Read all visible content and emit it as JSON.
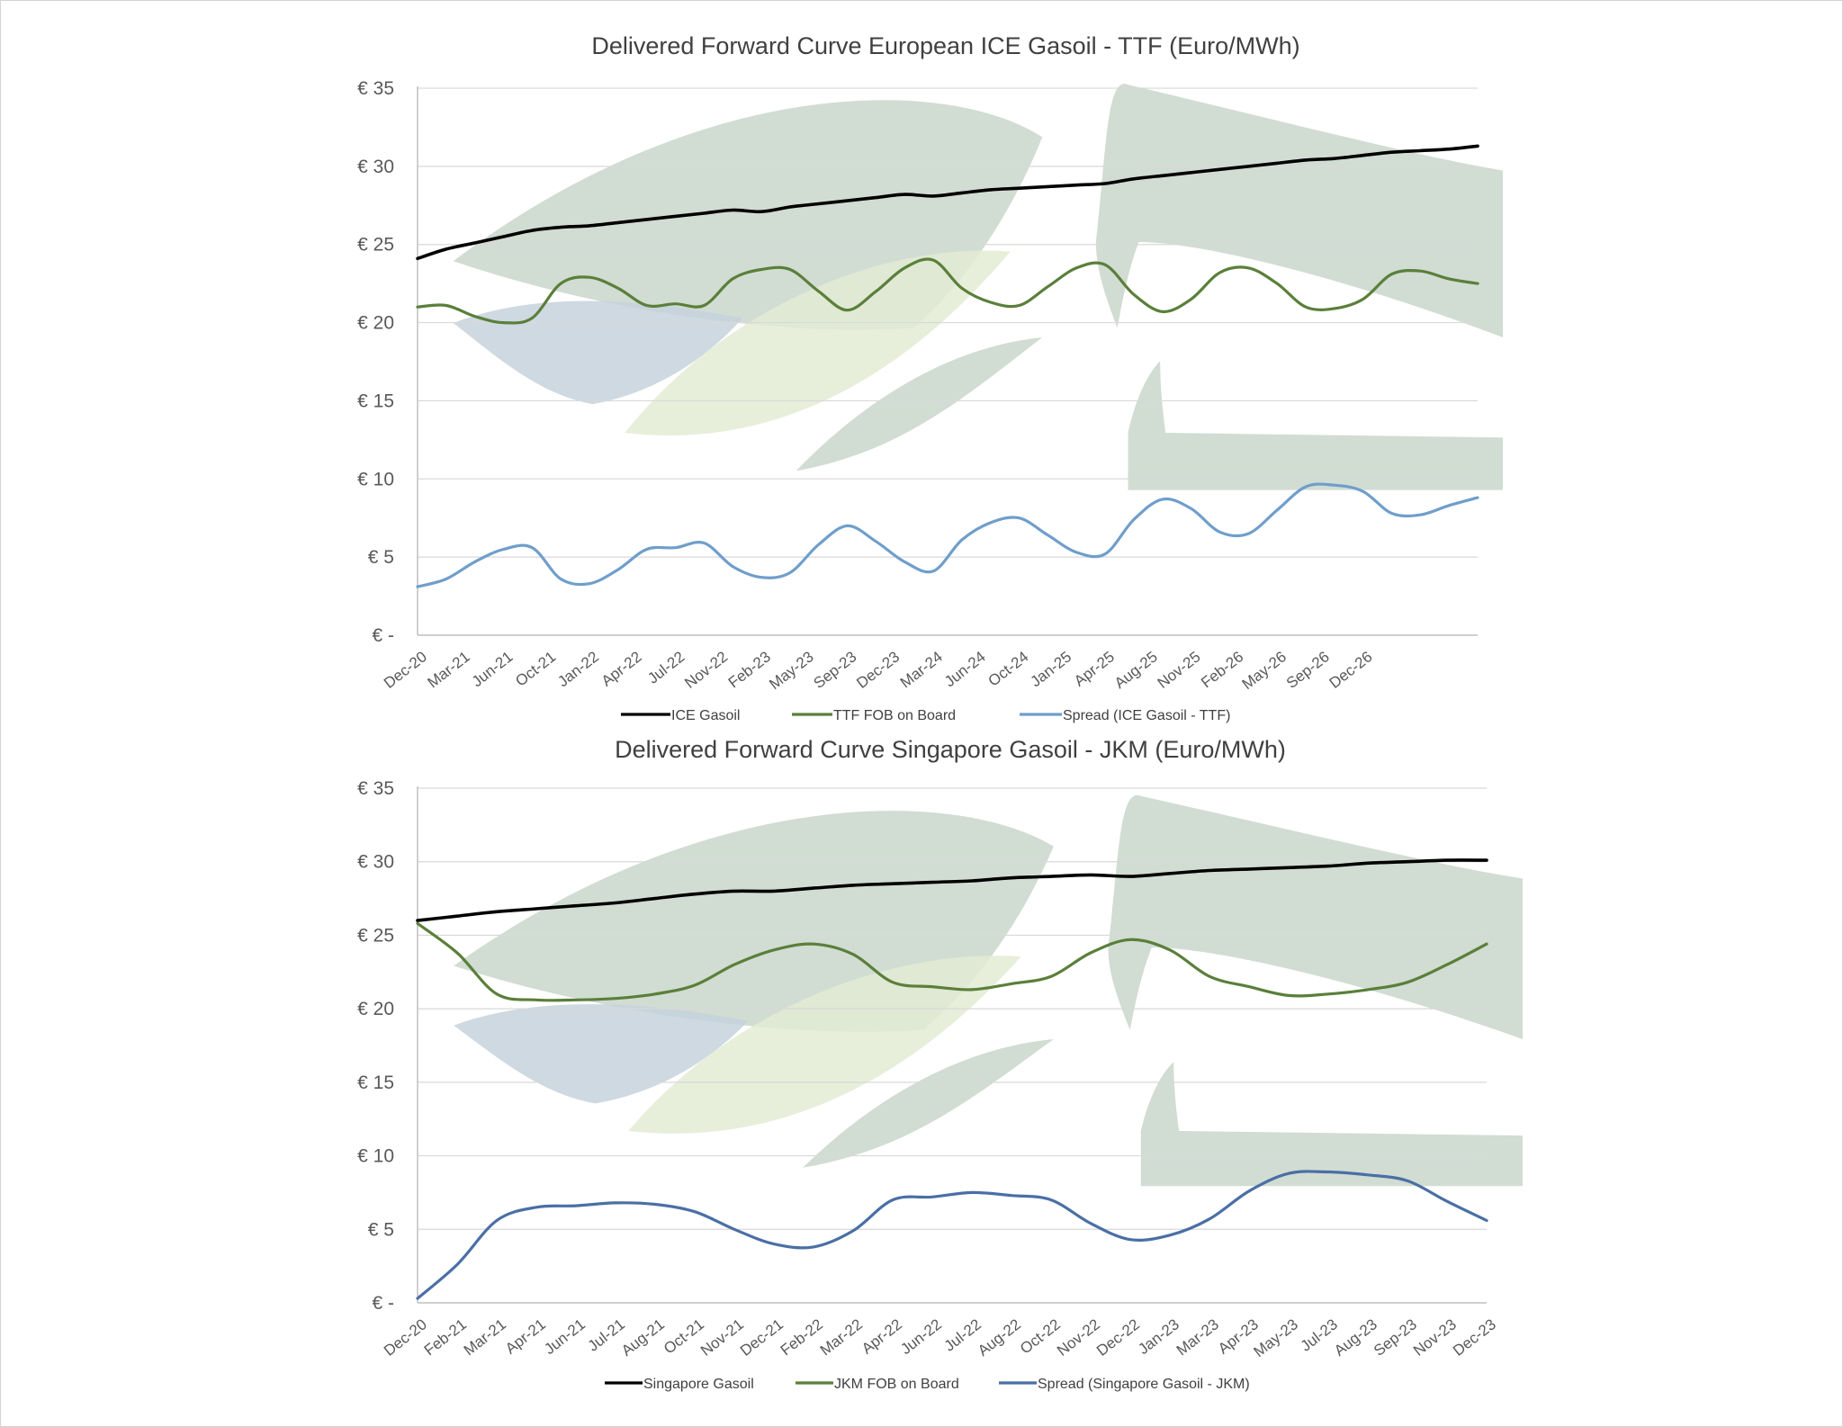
{
  "colors": {
    "primary": "#000000",
    "green": "#5a7f3a",
    "spread1": "#6f9ecb",
    "spread2": "#4a6fa5",
    "grid": "#d9d9d9",
    "watermark_green": "#c9d6cb",
    "watermark_blue": "#c5d2dc",
    "watermark_lime": "#e3ebd3"
  },
  "chart_data": [
    {
      "type": "line",
      "title": "Delivered Forward Curve European ICE Gasoil - TTF (Euro/MWh)",
      "ylim": [
        0,
        35
      ],
      "ytick_labels": [
        "€ -",
        "€ 5",
        "€ 10",
        "€ 15",
        "€ 20",
        "€ 25",
        "€ 30",
        "€ 35"
      ],
      "x_tick_labels": [
        "Dec-20",
        "Mar-21",
        "Jun-21",
        "Oct-21",
        "Jan-22",
        "Apr-22",
        "Jul-22",
        "Nov-22",
        "Feb-23",
        "May-23",
        "Sep-23",
        "Dec-23",
        "Mar-24",
        "Jun-24",
        "Oct-24",
        "Jan-25",
        "Apr-25",
        "Aug-25",
        "Nov-25",
        "Feb-26",
        "May-26",
        "Sep-26",
        "Dec-26"
      ],
      "x_range": [
        0,
        74
      ],
      "x": [
        0,
        2,
        4,
        6,
        8,
        10,
        12,
        14,
        16,
        18,
        20,
        22,
        24,
        26,
        28,
        30,
        32,
        34,
        36,
        38,
        40,
        42,
        44,
        46,
        48,
        50,
        52,
        54,
        56,
        58,
        60,
        62,
        64,
        66,
        68,
        70,
        72,
        74
      ],
      "series": [
        {
          "name": "ICE Gasoil",
          "color": "#000000",
          "values": [
            24.1,
            24.7,
            25.1,
            25.5,
            25.9,
            26.1,
            26.2,
            26.4,
            26.6,
            26.8,
            27.0,
            27.2,
            27.1,
            27.4,
            27.6,
            27.8,
            28.0,
            28.2,
            28.1,
            28.3,
            28.5,
            28.6,
            28.7,
            28.8,
            28.9,
            29.2,
            29.4,
            29.6,
            29.8,
            30.0,
            30.2,
            30.4,
            30.5,
            30.7,
            30.9,
            31.0,
            31.1,
            31.3
          ]
        },
        {
          "name": "TTF FOB on Board",
          "color": "#5a7f3a",
          "values": [
            21.0,
            21.1,
            20.4,
            20.0,
            20.3,
            22.5,
            22.9,
            22.2,
            21.1,
            21.2,
            21.1,
            22.8,
            23.4,
            23.4,
            22.0,
            20.8,
            22.0,
            23.5,
            24.0,
            22.2,
            21.3,
            21.1,
            22.3,
            23.5,
            23.7,
            21.8,
            20.7,
            21.5,
            23.2,
            23.5,
            22.5,
            21.0,
            20.9,
            21.5,
            23.1,
            23.3,
            22.8,
            22.5
          ]
        },
        {
          "name": "Spread (ICE Gasoil - TTF)",
          "color": "#6f9ecb",
          "values": [
            3.1,
            3.6,
            4.7,
            5.5,
            5.6,
            3.6,
            3.3,
            4.2,
            5.5,
            5.6,
            5.9,
            4.4,
            3.7,
            4.0,
            5.8,
            7.0,
            6.0,
            4.7,
            4.1,
            6.1,
            7.2,
            7.5,
            6.4,
            5.3,
            5.2,
            7.4,
            8.7,
            8.1,
            6.6,
            6.5,
            8.0,
            9.5,
            9.6,
            9.2,
            7.8,
            7.7,
            8.3,
            8.8
          ]
        }
      ],
      "legend": [
        "ICE Gasoil",
        "TTF FOB on Board",
        "Spread (ICE Gasoil - TTF)"
      ],
      "legend_position": "bottom"
    },
    {
      "type": "line",
      "title": "Delivered Forward Curve Singapore Gasoil - JKM (Euro/MWh)",
      "ylim": [
        0,
        35
      ],
      "ytick_labels": [
        "€ -",
        "€ 5",
        "€ 10",
        "€ 15",
        "€ 20",
        "€ 25",
        "€ 30",
        "€ 35"
      ],
      "x_tick_labels": [
        "Dec-20",
        "Feb-21",
        "Mar-21",
        "Apr-21",
        "Jun-21",
        "Jul-21",
        "Aug-21",
        "Oct-21",
        "Nov-21",
        "Dec-21",
        "Feb-22",
        "Mar-22",
        "Apr-22",
        "Jun-22",
        "Jul-22",
        "Aug-22",
        "Oct-22",
        "Nov-22",
        "Dec-22",
        "Jan-23",
        "Mar-23",
        "Apr-23",
        "May-23",
        "Jul-23",
        "Aug-23",
        "Sep-23",
        "Nov-23",
        "Dec-23"
      ],
      "x_range": [
        0,
        27
      ],
      "x": [
        0,
        1,
        2,
        3,
        4,
        5,
        6,
        7,
        8,
        9,
        10,
        11,
        12,
        13,
        14,
        15,
        16,
        17,
        18,
        19,
        20,
        21,
        22,
        23,
        24,
        25,
        26,
        27
      ],
      "series": [
        {
          "name": "Singapore Gasoil",
          "color": "#000000",
          "values": [
            26.0,
            26.3,
            26.6,
            26.8,
            27.0,
            27.2,
            27.5,
            27.8,
            28.0,
            28.0,
            28.2,
            28.4,
            28.5,
            28.6,
            28.7,
            28.9,
            29.0,
            29.1,
            29.0,
            29.2,
            29.4,
            29.5,
            29.6,
            29.7,
            29.9,
            30.0,
            30.1,
            30.1
          ]
        },
        {
          "name": "JKM FOB on Board",
          "color": "#5a7f3a",
          "values": [
            25.8,
            23.8,
            21.0,
            20.6,
            20.6,
            20.7,
            21.0,
            21.6,
            23.0,
            24.0,
            24.4,
            23.7,
            21.8,
            21.5,
            21.3,
            21.7,
            22.2,
            23.8,
            24.7,
            24.0,
            22.2,
            21.5,
            20.9,
            21.0,
            21.3,
            21.8,
            23.0,
            24.4
          ]
        },
        {
          "name": "Spread (Singapore Gasoil - JKM)",
          "color": "#4a6fa5",
          "values": [
            0.3,
            2.6,
            5.6,
            6.5,
            6.6,
            6.8,
            6.7,
            6.2,
            5.0,
            4.0,
            3.8,
            4.9,
            7.0,
            7.2,
            7.5,
            7.3,
            7.0,
            5.4,
            4.3,
            4.6,
            5.7,
            7.6,
            8.8,
            8.9,
            8.7,
            8.3,
            6.9,
            5.6
          ]
        }
      ],
      "legend": [
        "Singapore Gasoil",
        "JKM FOB on Board",
        "Spread (Singapore Gasoil - JKM)"
      ],
      "legend_position": "bottom"
    }
  ]
}
